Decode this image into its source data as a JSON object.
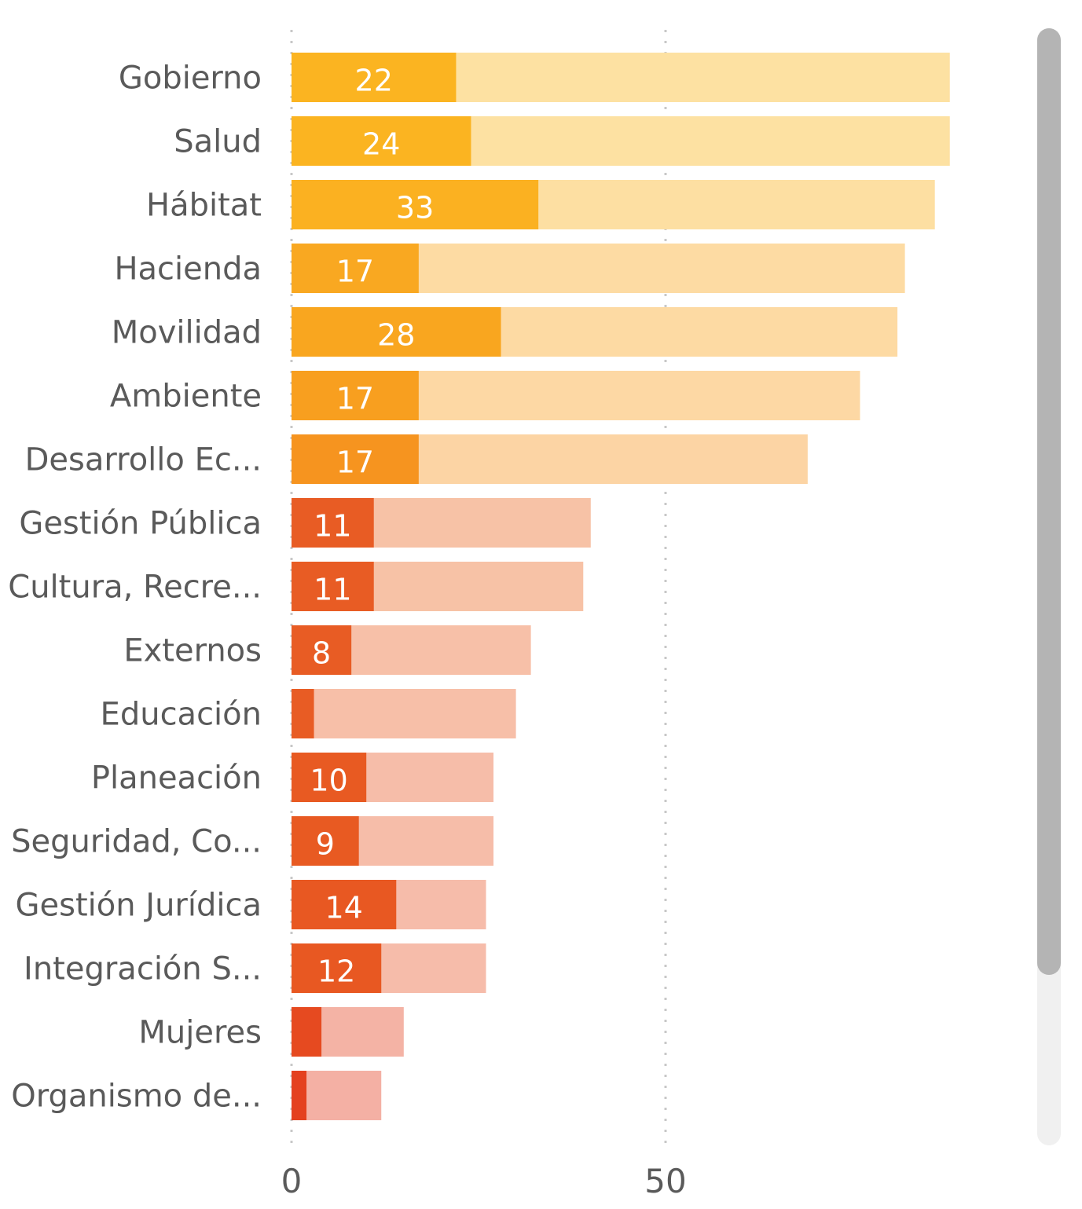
{
  "chart_data": {
    "type": "bar",
    "orientation": "horizontal",
    "categories": [
      "Gobierno",
      "Salud",
      "Hábitat",
      "Hacienda",
      "Movilidad",
      "Ambiente",
      "Desarrollo Ec...",
      "Gestión Pública",
      "Cultura, Recre...",
      "Externos",
      "Educación",
      "Planeación",
      "Seguridad, Co...",
      "Gestión Jurídica",
      "Integración S...",
      "Mujeres",
      "Organismo de..."
    ],
    "series": [
      {
        "values": [
          22,
          24,
          33,
          17,
          28,
          17,
          17,
          11,
          11,
          8,
          3,
          10,
          9,
          14,
          12,
          4,
          2
        ]
      },
      {
        "values": [
          88,
          88,
          86,
          82,
          81,
          76,
          69,
          40,
          39,
          32,
          30,
          27,
          27,
          26,
          26,
          15,
          12
        ]
      }
    ],
    "data_labels": [
      "22",
      "24",
      "33",
      "17",
      "28",
      "17",
      "17",
      "11",
      "11",
      "8",
      "",
      "10",
      "9",
      "14",
      "12",
      "",
      ""
    ],
    "bar_colors": [
      "#fbb421",
      "#fbb421",
      "#fbb121",
      "#f9a821",
      "#f9a61f",
      "#f89f1f",
      "#f6941f",
      "#e85c24",
      "#e85c24",
      "#e85c24",
      "#e85c24",
      "#e85a22",
      "#e85a22",
      "#e85822",
      "#e85822",
      "#e64a20",
      "#e4411f"
    ],
    "bg_colors": [
      "#fde1a2",
      "#fde1a2",
      "#fddfa2",
      "#fddba3",
      "#fddaa3",
      "#fdd8a4",
      "#fcd4a4",
      "#f7c2a6",
      "#f7c2a6",
      "#f7c0a8",
      "#f7bfa8",
      "#f6bda9",
      "#f6bda9",
      "#f6bcaa",
      "#f6bcaa",
      "#f4b3a5",
      "#f4b0a4"
    ],
    "xticks": [
      0,
      50
    ],
    "tick_labels": [
      "0",
      "50"
    ],
    "xlim": [
      0,
      100
    ],
    "grid": true
  }
}
